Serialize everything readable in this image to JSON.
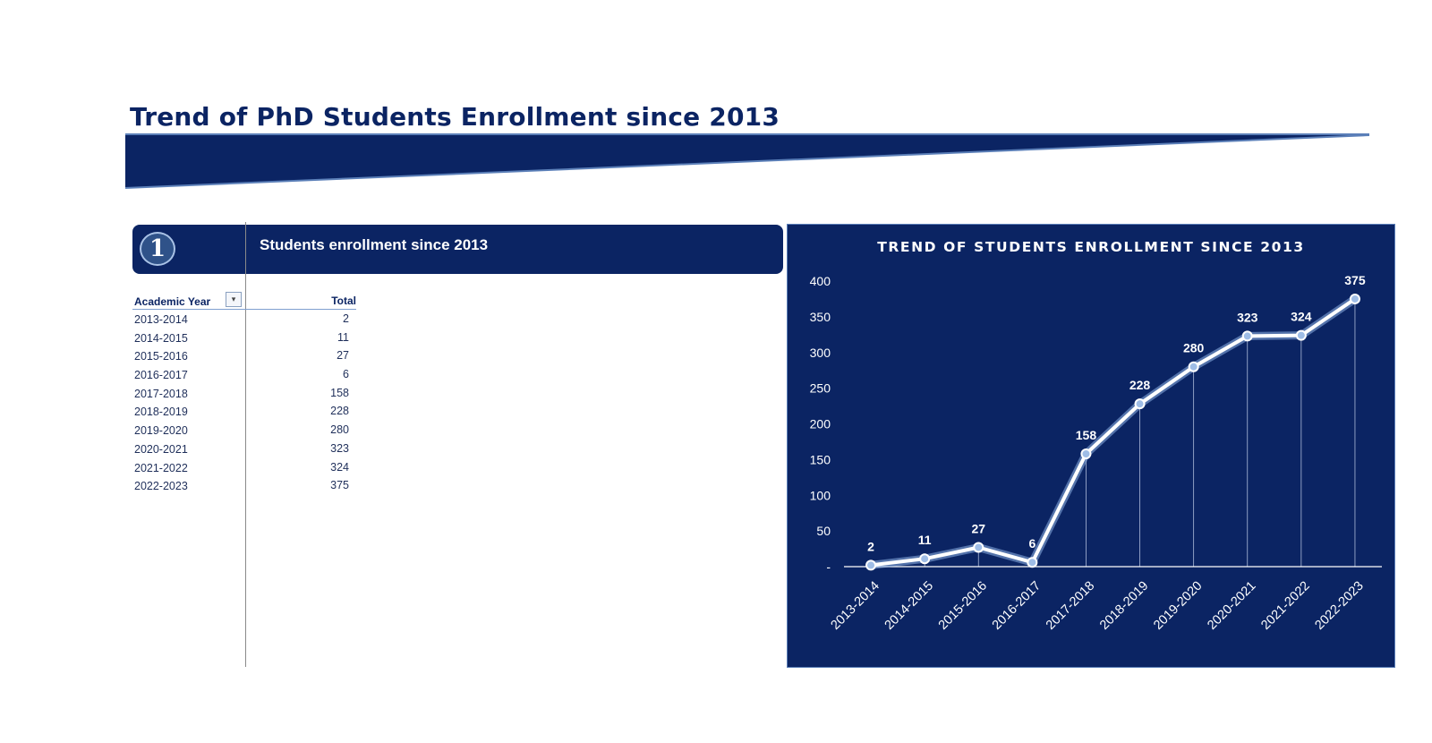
{
  "page": {
    "title": "Trend of PhD Students Enrollment since 2013"
  },
  "section": {
    "number": "1",
    "title": "Students enrollment  since 2013"
  },
  "pivot": {
    "col_year": "Academic Year",
    "col_total": "Total",
    "dropdown_icon": "dropdown-arrow-icon",
    "rows": [
      {
        "year": "2013-2014",
        "total": "2"
      },
      {
        "year": "2014-2015",
        "total": "11"
      },
      {
        "year": "2015-2016",
        "total": "27"
      },
      {
        "year": "2016-2017",
        "total": "6"
      },
      {
        "year": "2017-2018",
        "total": "158"
      },
      {
        "year": "2018-2019",
        "total": "228"
      },
      {
        "year": "2019-2020",
        "total": "280"
      },
      {
        "year": "2020-2021",
        "total": "323"
      },
      {
        "year": "2021-2022",
        "total": "324"
      },
      {
        "year": "2022-2023",
        "total": "375"
      }
    ]
  },
  "colors": {
    "brand_navy": "#0b2463",
    "accent_blue": "#5b7fb8",
    "line": "#ffffff"
  },
  "chart_data": {
    "type": "line",
    "title": "TREND OF STUDENTS ENROLLMENT SINCE 2013",
    "categories": [
      "2013-2014",
      "2014-2015",
      "2015-2016",
      "2016-2017",
      "2017-2018",
      "2018-2019",
      "2019-2020",
      "2020-2021",
      "2021-2022",
      "2022-2023"
    ],
    "series": [
      {
        "values": [
          2,
          11,
          27,
          6,
          158,
          228,
          280,
          323,
          324,
          375
        ]
      }
    ],
    "ylim": [
      0,
      400
    ],
    "yticks": [
      0,
      50,
      100,
      150,
      200,
      250,
      300,
      350,
      400
    ],
    "ytick_labels": [
      "-",
      "50",
      "100",
      "150",
      "200",
      "250",
      "300",
      "350",
      "400"
    ],
    "data_labels": true,
    "drop_lines": true,
    "grid": false,
    "legend": "none"
  }
}
